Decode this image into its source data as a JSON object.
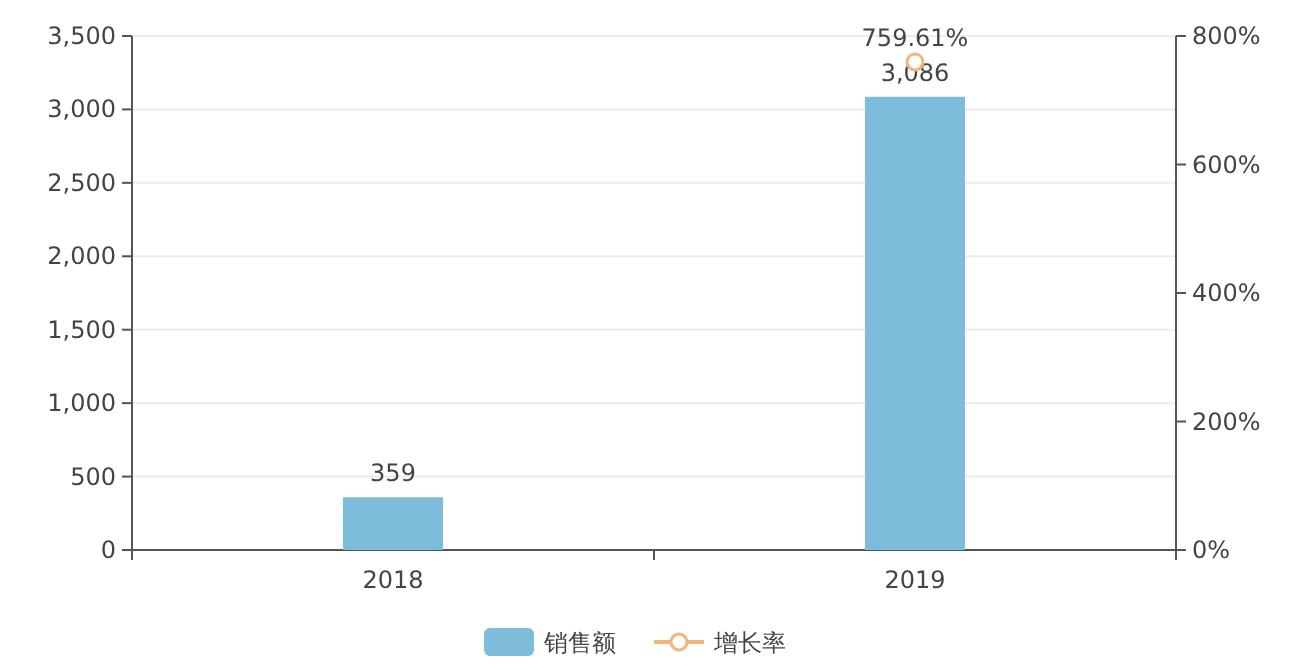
{
  "chart_data": {
    "type": "bar",
    "categories": [
      "2018",
      "2019"
    ],
    "series": [
      {
        "name": "销售额",
        "color": "#7dbcdb",
        "values": [
          359,
          3086
        ],
        "value_labels": [
          "359",
          "3,086"
        ]
      },
      {
        "name": "增长率",
        "type": "line",
        "axis": "y2",
        "color": "#f5b47c",
        "values": [
          null,
          759.61
        ],
        "value_labels": [
          null,
          "759.61%"
        ]
      }
    ],
    "ylim": [
      0,
      3500
    ],
    "yticks": [
      {
        "value": 0,
        "label": "0"
      },
      {
        "value": 500,
        "label": "500"
      },
      {
        "value": 1000,
        "label": "1,000"
      },
      {
        "value": 1500,
        "label": "1,500"
      },
      {
        "value": 2000,
        "label": "2,000"
      },
      {
        "value": 2500,
        "label": "2,500"
      },
      {
        "value": 3000,
        "label": "3,000"
      },
      {
        "value": 3500,
        "label": "3,500"
      }
    ],
    "y2lim": [
      0,
      800
    ],
    "y2ticks": [
      {
        "value": 0,
        "label": "0%"
      },
      {
        "value": 200,
        "label": "200%"
      },
      {
        "value": 400,
        "label": "400%"
      },
      {
        "value": 600,
        "label": "600%"
      },
      {
        "value": 800,
        "label": "800%"
      }
    ],
    "grid": "y",
    "legend": "bottom",
    "marker": "circle"
  }
}
